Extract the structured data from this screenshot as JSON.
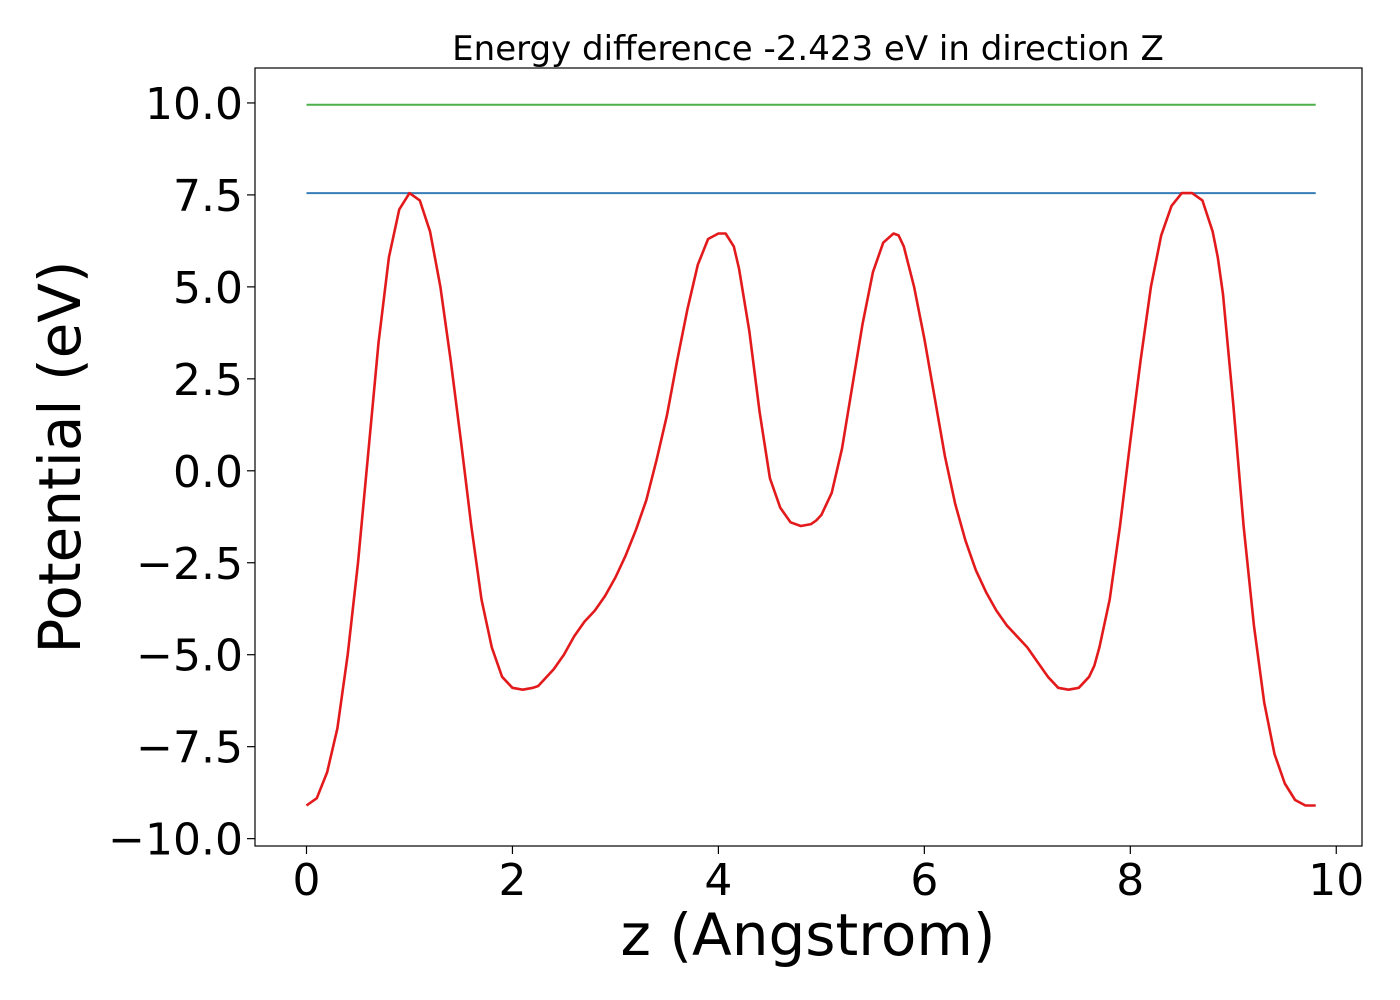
{
  "chart_data": {
    "type": "line",
    "title": "Energy difference -2.423 eV in direction Z",
    "xlabel": "z (Angstrom)",
    "ylabel": "Potential (eV)",
    "xlim": [
      -0.5,
      10.25
    ],
    "ylim": [
      -10.2,
      10.95
    ],
    "xticks": [
      0,
      2,
      4,
      6,
      8,
      10
    ],
    "xtick_labels": [
      "0",
      "2",
      "4",
      "6",
      "8",
      "10"
    ],
    "yticks": [
      -10,
      -7.5,
      -5,
      -2.5,
      0,
      2.5,
      5,
      7.5,
      10
    ],
    "ytick_labels": [
      "−10.0",
      "−7.5",
      "−5.0",
      "−2.5",
      "0.0",
      "2.5",
      "5.0",
      "7.5",
      "10.0"
    ],
    "grid": false,
    "colors": {
      "potential": "#e31a1c",
      "upper_level": "#4daf4a",
      "lower_level": "#377eb8"
    },
    "series": [
      {
        "key": "potential",
        "x": [
          0.0,
          0.1,
          0.2,
          0.3,
          0.4,
          0.5,
          0.6,
          0.7,
          0.8,
          0.9,
          1.0,
          1.1,
          1.2,
          1.3,
          1.4,
          1.5,
          1.6,
          1.7,
          1.8,
          1.9,
          2.0,
          2.1,
          2.2,
          2.25,
          2.3,
          2.4,
          2.5,
          2.6,
          2.7,
          2.8,
          2.9,
          3.0,
          3.1,
          3.2,
          3.3,
          3.4,
          3.5,
          3.6,
          3.7,
          3.8,
          3.9,
          4.0,
          4.07,
          4.15,
          4.2,
          4.3,
          4.4,
          4.5,
          4.6,
          4.7,
          4.8,
          4.9,
          4.95,
          5.0,
          5.1,
          5.2,
          5.3,
          5.4,
          5.5,
          5.6,
          5.7,
          5.75,
          5.8,
          5.9,
          6.0,
          6.1,
          6.2,
          6.3,
          6.4,
          6.5,
          6.6,
          6.7,
          6.8,
          6.9,
          7.0,
          7.1,
          7.2,
          7.3,
          7.4,
          7.5,
          7.6,
          7.65,
          7.7,
          7.8,
          7.9,
          8.0,
          8.1,
          8.2,
          8.3,
          8.4,
          8.5,
          8.6,
          8.7,
          8.8,
          8.85,
          8.9,
          9.0,
          9.1,
          9.2,
          9.3,
          9.4,
          9.5,
          9.6,
          9.7,
          9.8
        ],
        "y": [
          -9.1,
          -8.9,
          -8.2,
          -7.0,
          -5.0,
          -2.5,
          0.5,
          3.5,
          5.8,
          7.1,
          7.55,
          7.35,
          6.5,
          5.0,
          3.0,
          0.8,
          -1.5,
          -3.5,
          -4.8,
          -5.6,
          -5.9,
          -5.95,
          -5.9,
          -5.85,
          -5.7,
          -5.4,
          -5.0,
          -4.5,
          -4.1,
          -3.8,
          -3.4,
          -2.9,
          -2.3,
          -1.6,
          -0.8,
          0.3,
          1.5,
          3.0,
          4.4,
          5.6,
          6.3,
          6.45,
          6.45,
          6.1,
          5.5,
          3.8,
          1.6,
          -0.2,
          -1.0,
          -1.4,
          -1.5,
          -1.45,
          -1.35,
          -1.2,
          -0.6,
          0.6,
          2.3,
          4.0,
          5.4,
          6.2,
          6.45,
          6.4,
          6.1,
          5.0,
          3.6,
          2.0,
          0.4,
          -0.9,
          -1.9,
          -2.7,
          -3.3,
          -3.8,
          -4.2,
          -4.5,
          -4.8,
          -5.2,
          -5.6,
          -5.9,
          -5.95,
          -5.9,
          -5.6,
          -5.3,
          -4.8,
          -3.5,
          -1.5,
          0.8,
          3.0,
          5.0,
          6.4,
          7.2,
          7.55,
          7.55,
          7.35,
          6.5,
          5.8,
          4.8,
          1.8,
          -1.5,
          -4.2,
          -6.3,
          -7.7,
          -8.5,
          -8.95,
          -9.1,
          -9.1
        ]
      },
      {
        "key": "upper_level",
        "x": [
          0,
          9.8
        ],
        "y": [
          9.95,
          9.95
        ]
      },
      {
        "key": "lower_level",
        "x": [
          0,
          9.8
        ],
        "y": [
          7.55,
          7.55
        ]
      }
    ]
  }
}
